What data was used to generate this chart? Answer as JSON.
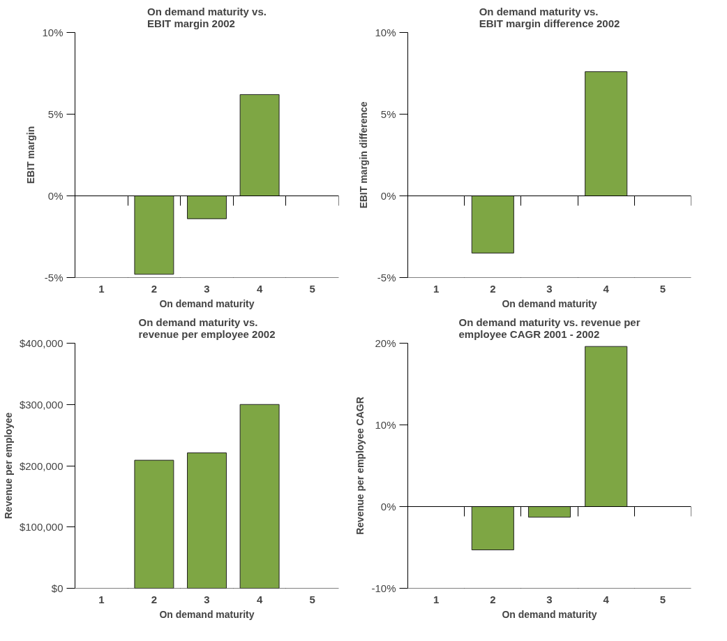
{
  "chart_data": [
    {
      "type": "bar",
      "title": "On demand maturity vs.\nEBIT margin 2002",
      "xlabel": "On demand maturity",
      "ylabel": "EBIT margin",
      "categories": [
        "1",
        "2",
        "3",
        "4",
        "5"
      ],
      "values": [
        null,
        -4.8,
        -1.4,
        6.2,
        null
      ],
      "color": "#7ea644",
      "ylim": [
        -5,
        10
      ],
      "yticks": [
        {
          "value": -5,
          "label": "-5%"
        },
        {
          "value": 0,
          "label": "0%"
        },
        {
          "value": 5,
          "label": "5%"
        },
        {
          "value": 10,
          "label": "10%"
        }
      ]
    },
    {
      "type": "bar",
      "title": "On demand maturity vs.\nEBIT margin difference 2002",
      "xlabel": "On demand maturity",
      "ylabel": "EBIT margin difference",
      "categories": [
        "1",
        "2",
        "3",
        "4",
        "5"
      ],
      "values": [
        null,
        -3.5,
        null,
        7.6,
        null
      ],
      "color": "#7ea644",
      "ylim": [
        -5,
        10
      ],
      "yticks": [
        {
          "value": -5,
          "label": "-5%"
        },
        {
          "value": 0,
          "label": "0%"
        },
        {
          "value": 5,
          "label": "5%"
        },
        {
          "value": 10,
          "label": "10%"
        }
      ]
    },
    {
      "type": "bar",
      "title": "On demand maturity vs.\nrevenue per employee 2002",
      "xlabel": "On demand maturity",
      "ylabel": "Revenue per employee",
      "categories": [
        "1",
        "2",
        "3",
        "4",
        "5"
      ],
      "values": [
        null,
        209000,
        221000,
        300000,
        null
      ],
      "color": "#7ea644",
      "ylim": [
        0,
        400000
      ],
      "yticks": [
        {
          "value": 0,
          "label": "$0"
        },
        {
          "value": 100000,
          "label": "$100,000"
        },
        {
          "value": 200000,
          "label": "$200,000"
        },
        {
          "value": 300000,
          "label": "$300,000"
        },
        {
          "value": 400000,
          "label": "$400,000"
        }
      ]
    },
    {
      "type": "bar",
      "title": "On demand maturity vs. revenue per\nemployee CAGR 2001 - 2002",
      "xlabel": "On demand maturity",
      "ylabel": "Revenue per employee CAGR",
      "categories": [
        "1",
        "2",
        "3",
        "4",
        "5"
      ],
      "values": [
        null,
        -5.3,
        -1.3,
        19.6,
        null
      ],
      "color": "#7ea644",
      "ylim": [
        -10,
        20
      ],
      "yticks": [
        {
          "value": -10,
          "label": "-10%"
        },
        {
          "value": 0,
          "label": "0%"
        },
        {
          "value": 10,
          "label": "10%"
        },
        {
          "value": 20,
          "label": "20%"
        }
      ]
    }
  ]
}
